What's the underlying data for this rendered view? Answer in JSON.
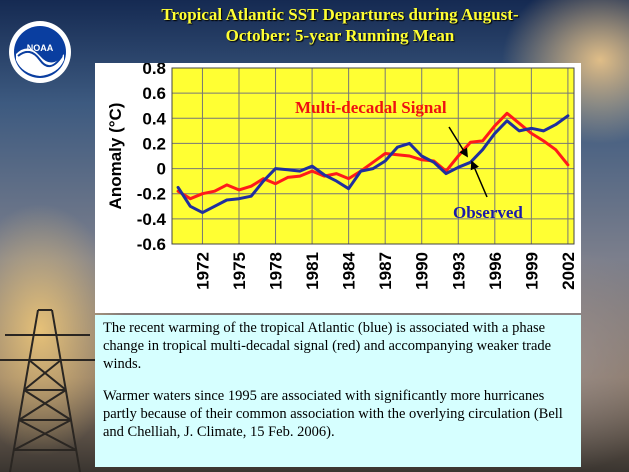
{
  "title": {
    "line1": "Tropical Atlantic SST Departures during August-",
    "line2": "October: 5-year Running Mean"
  },
  "logo": {
    "text": "NOAA",
    "icon": "noaa-logo"
  },
  "colors": {
    "plot_background": "#ffff33",
    "observed": "#1f2f9f",
    "multidecadal": "#ff1a1a",
    "annotation_red": "#ee1111",
    "annotation_blue": "#1a1aaa",
    "text_box_background": "#d6ffff"
  },
  "chart_data": {
    "type": "line",
    "title": "",
    "xlabel": "",
    "ylabel": "Anomaly (°C)",
    "xlim": [
      1969.5,
      2002.5
    ],
    "ylim": [
      -0.6,
      0.8
    ],
    "grid": true,
    "yticks": [
      "-0.6",
      "-0.4",
      "-0.2",
      "0",
      "0.2",
      "0.4",
      "0.6",
      "0.8"
    ],
    "xticks": [
      "1972",
      "1975",
      "1978",
      "1981",
      "1984",
      "1987",
      "1990",
      "1993",
      "1996",
      "1999",
      "2002"
    ],
    "series": [
      {
        "name": "Observed",
        "x": [
          1970,
          1971,
          1972,
          1973,
          1974,
          1975,
          1976,
          1977,
          1978,
          1979,
          1980,
          1981,
          1982,
          1983,
          1984,
          1985,
          1986,
          1987,
          1988,
          1989,
          1990,
          1991,
          1992,
          1993,
          1994,
          1995,
          1996,
          1997,
          1998,
          1999,
          2000,
          2001,
          2002
        ],
        "values": [
          -0.15,
          -0.3,
          -0.35,
          -0.3,
          -0.25,
          -0.24,
          -0.22,
          -0.1,
          0.0,
          -0.01,
          -0.02,
          0.02,
          -0.05,
          -0.1,
          -0.16,
          -0.02,
          0.0,
          0.06,
          0.17,
          0.2,
          0.1,
          0.05,
          -0.04,
          0.01,
          0.05,
          0.15,
          0.28,
          0.38,
          0.3,
          0.32,
          0.3,
          0.35,
          0.42
        ]
      },
      {
        "name": "Multi-decadal Signal",
        "x": [
          1970,
          1971,
          1972,
          1973,
          1974,
          1975,
          1976,
          1977,
          1978,
          1979,
          1980,
          1981,
          1982,
          1983,
          1984,
          1985,
          1986,
          1987,
          1988,
          1989,
          1990,
          1991,
          1992,
          1993,
          1994,
          1995,
          1996,
          1997,
          1998,
          1999,
          2000,
          2001,
          2002
        ],
        "values": [
          -0.18,
          -0.24,
          -0.2,
          -0.18,
          -0.13,
          -0.17,
          -0.14,
          -0.08,
          -0.12,
          -0.07,
          -0.06,
          -0.02,
          -0.06,
          -0.04,
          -0.08,
          -0.02,
          0.05,
          0.12,
          0.11,
          0.1,
          0.07,
          0.06,
          -0.02,
          0.1,
          0.21,
          0.22,
          0.34,
          0.44,
          0.36,
          0.28,
          0.22,
          0.15,
          0.03
        ]
      }
    ],
    "annotations": [
      {
        "text": "Multi-decadal Signal",
        "color": "red"
      },
      {
        "text": "Observed",
        "color": "blue"
      }
    ]
  },
  "text_box": {
    "para1": "The recent warming of the tropical Atlantic (blue) is associated with a phase change in tropical multi-decadal signal (red) and accompanying weaker trade winds.",
    "para2": "Warmer waters since 1995 are associated with significantly more hurricanes partly because of their common association with the overlying circulation (Bell and Chelliah, J. Climate, 15 Feb. 2006)."
  }
}
